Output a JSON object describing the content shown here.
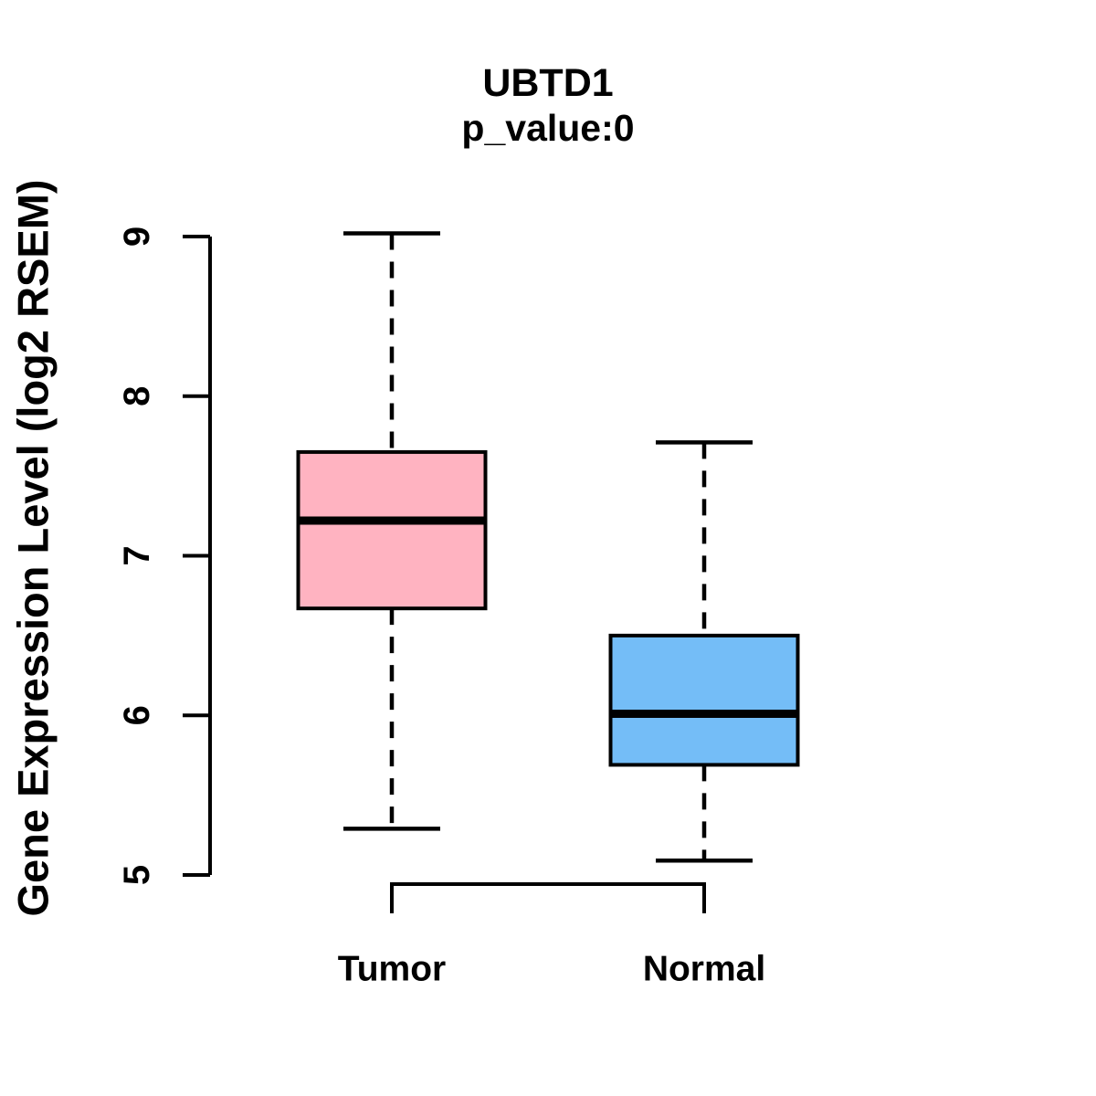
{
  "chart_data": {
    "type": "boxplot",
    "title": "UBTD1",
    "subtitle": "p_value:0",
    "ylabel": "Gene Expression Level (log2 RSEM)",
    "xlabel": "",
    "categories": [
      "Tumor",
      "Normal"
    ],
    "ylim": [
      5,
      9
    ],
    "yticks": [
      5,
      6,
      7,
      8,
      9
    ],
    "grid": false,
    "legend": "none",
    "series": [
      {
        "name": "Tumor",
        "color": "#FFB3C1",
        "whisker_low": 5.29,
        "q1": 6.67,
        "median": 7.22,
        "q3": 7.65,
        "whisker_high": 9.02
      },
      {
        "name": "Normal",
        "color": "#74BDF7",
        "whisker_low": 5.09,
        "q1": 5.69,
        "median": 6.01,
        "q3": 6.5,
        "whisker_high": 7.71
      }
    ],
    "stroke_color": "#000000",
    "background_color": "#FFFFFF"
  }
}
